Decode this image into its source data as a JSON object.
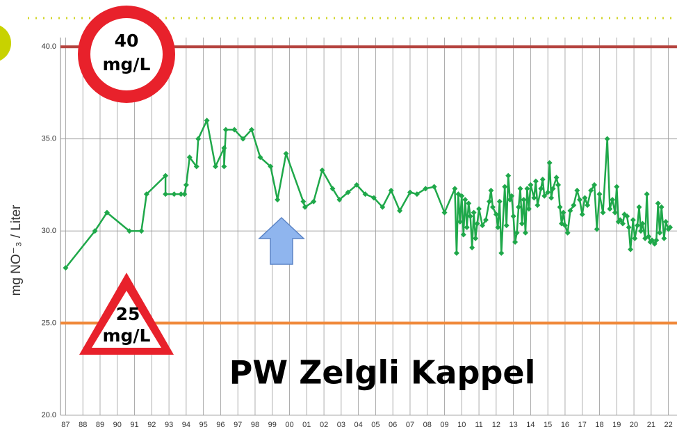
{
  "chart_data": {
    "type": "line",
    "title": "PW Zelgli Kappel",
    "y_label": "mg NO⁻₃ / Liter",
    "annotations": [
      {
        "shape": "circle",
        "lines": [
          "40",
          "mg/L"
        ],
        "color": "#e8212b"
      },
      {
        "shape": "triangle",
        "lines": [
          "25",
          "mg/L"
        ],
        "color": "#e8212b"
      }
    ],
    "reference_lines": [
      {
        "value": 40,
        "color": "#b5443f"
      },
      {
        "value": 25,
        "color": "#f08a3c"
      }
    ],
    "xlim": [
      1986.7,
      2022.5
    ],
    "ylim": [
      20,
      40.5
    ],
    "grid": true,
    "yticks": [
      {
        "value": 20,
        "label": "20.0"
      },
      {
        "value": 25,
        "label": "25.0"
      },
      {
        "value": 30,
        "label": "30.0"
      },
      {
        "value": 35,
        "label": "35.0"
      },
      {
        "value": 40,
        "label": "40.0"
      }
    ],
    "xticks": [
      {
        "value": 1987,
        "label": "87"
      },
      {
        "value": 1988,
        "label": "88"
      },
      {
        "value": 1989,
        "label": "89"
      },
      {
        "value": 1990,
        "label": "90"
      },
      {
        "value": 1991,
        "label": "91"
      },
      {
        "value": 1992,
        "label": "92"
      },
      {
        "value": 1993,
        "label": "93"
      },
      {
        "value": 1994,
        "label": "94"
      },
      {
        "value": 1995,
        "label": "95"
      },
      {
        "value": 1996,
        "label": "96"
      },
      {
        "value": 1997,
        "label": "97"
      },
      {
        "value": 1998,
        "label": "98"
      },
      {
        "value": 1999,
        "label": "99"
      },
      {
        "value": 2000,
        "label": "00"
      },
      {
        "value": 2001,
        "label": "01"
      },
      {
        "value": 2002,
        "label": "02"
      },
      {
        "value": 2003,
        "label": "03"
      },
      {
        "value": 2004,
        "label": "04"
      },
      {
        "value": 2005,
        "label": "05"
      },
      {
        "value": 2006,
        "label": "06"
      },
      {
        "value": 2007,
        "label": "07"
      },
      {
        "value": 2008,
        "label": "08"
      },
      {
        "value": 2009,
        "label": "09"
      },
      {
        "value": 2010,
        "label": "10"
      },
      {
        "value": 2011,
        "label": "11"
      },
      {
        "value": 2012,
        "label": "12"
      },
      {
        "value": 2013,
        "label": "13"
      },
      {
        "value": 2014,
        "label": "14"
      },
      {
        "value": 2015,
        "label": "15"
      },
      {
        "value": 2016,
        "label": "16"
      },
      {
        "value": 2017,
        "label": "17"
      },
      {
        "value": 2018,
        "label": "18"
      },
      {
        "value": 2019,
        "label": "19"
      },
      {
        "value": 2020,
        "label": "20"
      },
      {
        "value": 2021,
        "label": "21"
      },
      {
        "value": 2022,
        "label": "22"
      }
    ],
    "series": [
      {
        "color": "#1fa84a",
        "x": [
          1987.0,
          1988.7,
          1989.4,
          1990.7,
          1991.4,
          1991.7,
          1992.8,
          1992.8,
          1993.3,
          1993.7,
          1993.9,
          1994.0,
          1994.2,
          1994.6,
          1994.7,
          1995.2,
          1995.7,
          1996.2,
          1996.2,
          1996.3,
          1996.8,
          1997.3,
          1997.8,
          1998.3,
          1998.9,
          1999.3,
          1999.8,
          2000.8,
          2000.9,
          2001.4,
          2001.9,
          2002.5,
          2002.9,
          2003.4,
          2003.9,
          2004.4,
          2004.9,
          2005.4,
          2005.9,
          2006.4,
          2007.0,
          2007.4,
          2007.9,
          2008.4,
          2009.0,
          2009.6,
          2009.7,
          2009.8,
          2009.9,
          2010.0,
          2010.1,
          2010.2,
          2010.3,
          2010.4,
          2010.5,
          2010.6,
          2010.7,
          2010.8,
          2010.9,
          2011.0,
          2011.2,
          2011.4,
          2011.6,
          2011.7,
          2011.8,
          2012.0,
          2012.1,
          2012.2,
          2012.3,
          2012.5,
          2012.6,
          2012.7,
          2012.8,
          2012.9,
          2013.0,
          2013.1,
          2013.2,
          2013.3,
          2013.4,
          2013.5,
          2013.6,
          2013.7,
          2013.8,
          2013.9,
          2014.0,
          2014.2,
          2014.3,
          2014.4,
          2014.6,
          2014.7,
          2014.8,
          2015.0,
          2015.1,
          2015.2,
          2015.3,
          2015.5,
          2015.6,
          2015.7,
          2015.8,
          2015.9,
          2016.0,
          2016.15,
          2016.3,
          2016.5,
          2016.7,
          2016.85,
          2017.0,
          2017.15,
          2017.3,
          2017.5,
          2017.7,
          2017.85,
          2018.0,
          2018.2,
          2018.45,
          2018.6,
          2018.75,
          2018.9,
          2019.0,
          2019.1,
          2019.2,
          2019.35,
          2019.45,
          2019.6,
          2019.7,
          2019.8,
          2019.95,
          2020.05,
          2020.2,
          2020.3,
          2020.4,
          2020.5,
          2020.65,
          2020.75,
          2020.85,
          2020.95,
          2021.05,
          2021.2,
          2021.3,
          2021.4,
          2021.5,
          2021.6,
          2021.75,
          2021.85,
          2022.0,
          2022.1
        ],
        "values": [
          28,
          30,
          31,
          30,
          30,
          32,
          33,
          32,
          32,
          32,
          32,
          32.5,
          34,
          33.5,
          35,
          36,
          33.5,
          34.5,
          33.5,
          35.5,
          35.5,
          35,
          35.5,
          34,
          33.5,
          31.7,
          34.2,
          31.6,
          31.3,
          31.6,
          33.3,
          32.3,
          31.7,
          32.1,
          32.5,
          32,
          31.8,
          31.3,
          32.2,
          31.1,
          32.1,
          32,
          32.3,
          32.4,
          31,
          32.3,
          28.8,
          32,
          30.5,
          31.9,
          29.8,
          31.7,
          30.2,
          31.5,
          30.8,
          29.1,
          31,
          29.6,
          30.4,
          31.2,
          30.3,
          30.6,
          31.6,
          32.2,
          31.3,
          30.9,
          30.2,
          31.6,
          28.8,
          32.4,
          30.3,
          33,
          31.7,
          31.9,
          30.8,
          29.4,
          29.9,
          31.3,
          32.3,
          30.4,
          31.7,
          29.9,
          32.3,
          31.2,
          32.5,
          31.8,
          32.7,
          31.4,
          32.3,
          32.8,
          31.9,
          32.1,
          33.7,
          31.8,
          32.3,
          32.9,
          32.5,
          31.3,
          30.4,
          31,
          30.3,
          29.9,
          31.1,
          31.4,
          32.2,
          31.7,
          30.9,
          31.8,
          31.4,
          32.2,
          32.5,
          30.1,
          32,
          31,
          35,
          31.2,
          31.7,
          31,
          32.4,
          30.5,
          30.6,
          30.4,
          30.9,
          30.8,
          30.2,
          29,
          30.6,
          29.6,
          30.3,
          31.3,
          30,
          30.4,
          29.6,
          32,
          29.7,
          29.4,
          29.5,
          29.3,
          29.5,
          31.5,
          29.9,
          31.3,
          29.6,
          30.5,
          30.1,
          30.2
        ]
      }
    ]
  }
}
